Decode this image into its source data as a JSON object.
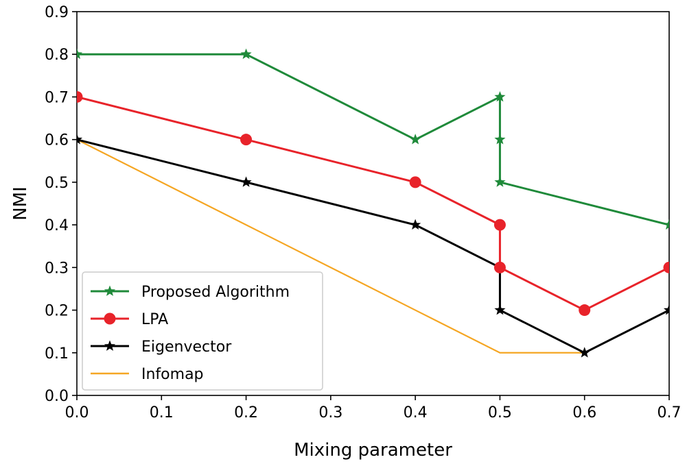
{
  "chart_data": {
    "type": "line",
    "title": "",
    "xlabel": "Mixing parameter",
    "ylabel": "NMI",
    "xlim": [
      0.0,
      0.7
    ],
    "ylim": [
      0.0,
      0.9
    ],
    "x_ticks": [
      0.0,
      0.1,
      0.2,
      0.3,
      0.4,
      0.5,
      0.6,
      0.7
    ],
    "x_tick_labels": [
      "0.0",
      "0.1",
      "0.2",
      "0.3",
      "0.4",
      "0.5",
      "0.6",
      "0.7"
    ],
    "y_ticks": [
      0.0,
      0.1,
      0.2,
      0.3,
      0.4,
      0.5,
      0.6,
      0.7,
      0.8,
      0.9
    ],
    "y_tick_labels": [
      "0.0",
      "0.1",
      "0.2",
      "0.3",
      "0.4",
      "0.5",
      "0.6",
      "0.7",
      "0.8",
      "0.9"
    ],
    "grid": false,
    "legend_position": "lower-left",
    "series": [
      {
        "name": "Proposed Algorithm",
        "color": "#1f8a3a",
        "marker": "star",
        "points": [
          [
            0.0,
            0.8
          ],
          [
            0.2,
            0.8
          ],
          [
            0.4,
            0.6
          ],
          [
            0.5,
            0.7
          ],
          [
            0.5,
            0.6
          ],
          [
            0.5,
            0.5
          ],
          [
            0.7,
            0.4
          ]
        ]
      },
      {
        "name": "LPA",
        "color": "#e8232a",
        "marker": "circle",
        "points": [
          [
            0.0,
            0.7
          ],
          [
            0.2,
            0.6
          ],
          [
            0.4,
            0.5
          ],
          [
            0.5,
            0.4
          ],
          [
            0.5,
            0.3
          ],
          [
            0.6,
            0.2
          ],
          [
            0.7,
            0.3
          ]
        ]
      },
      {
        "name": "Eigenvector",
        "color": "#000000",
        "marker": "star",
        "points": [
          [
            0.0,
            0.6
          ],
          [
            0.2,
            0.5
          ],
          [
            0.4,
            0.4
          ],
          [
            0.5,
            0.3
          ],
          [
            0.5,
            0.2
          ],
          [
            0.6,
            0.1
          ],
          [
            0.7,
            0.2
          ]
        ]
      },
      {
        "name": "Infomap",
        "color": "#f5a623",
        "marker": "none",
        "points": [
          [
            0.0,
            0.6
          ],
          [
            0.2,
            0.4
          ],
          [
            0.4,
            0.2
          ],
          [
            0.5,
            0.1
          ],
          [
            0.6,
            0.1
          ]
        ]
      }
    ]
  }
}
